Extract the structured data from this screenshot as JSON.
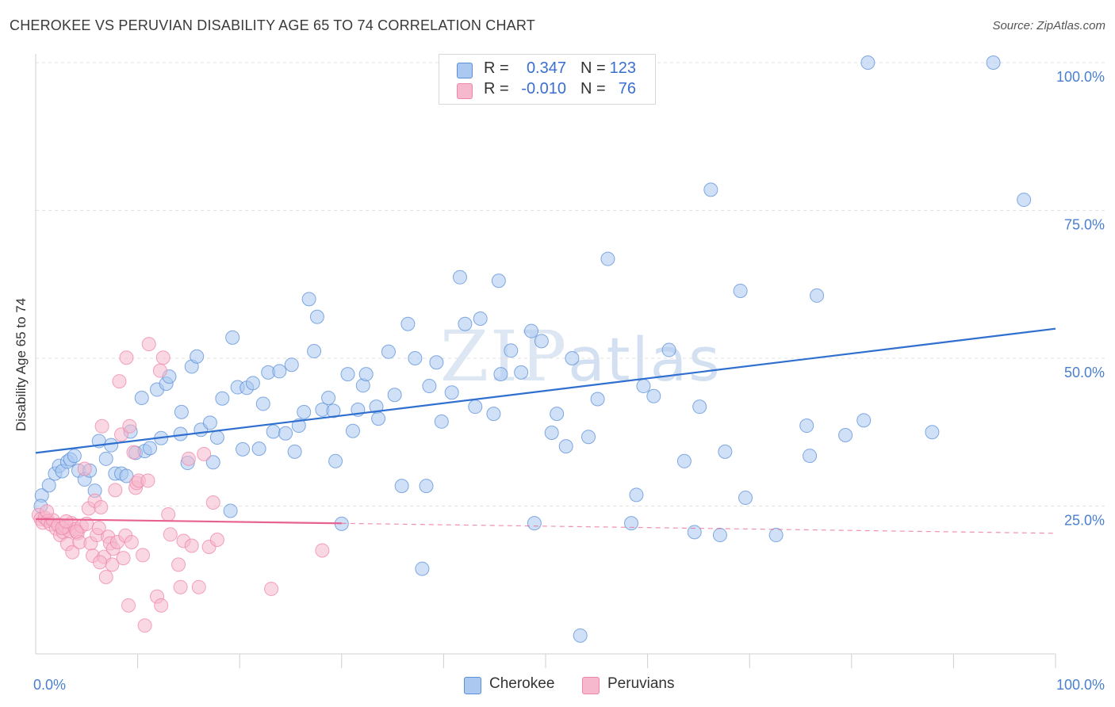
{
  "header": {
    "title": "CHEROKEE VS PERUVIAN DISABILITY AGE 65 TO 74 CORRELATION CHART",
    "source": "Source: ZipAtlas.com"
  },
  "watermark": {
    "zip": "ZIP",
    "atlas": "atlas"
  },
  "legend": {
    "rows": [
      {
        "r_label": "R =",
        "r_value": "0.347",
        "n_label": "N =",
        "n_value": "123",
        "color": "#aac8f0"
      },
      {
        "r_label": "R =",
        "r_value": "-0.010",
        "n_label": "N =",
        "n_value": "76",
        "color": "#f6b8cc"
      }
    ]
  },
  "bottom_legend": {
    "items": [
      {
        "label": "Cherokee",
        "color": "#aac8f0"
      },
      {
        "label": "Peruvians",
        "color": "#f6b8cc"
      }
    ]
  },
  "chart_data": {
    "type": "scatter",
    "title": "CHEROKEE VS PERUVIAN DISABILITY AGE 65 TO 74 CORRELATION CHART",
    "xlabel": "",
    "ylabel": "Disability Age 65 to 74",
    "xlim": [
      0,
      100
    ],
    "ylim": [
      0,
      100
    ],
    "x_tick_labels": [
      {
        "value": 0,
        "label": "0.0%"
      },
      {
        "value": 100,
        "label": "100.0%"
      }
    ],
    "y_tick_labels": [
      {
        "value": 25,
        "label": "25.0%"
      },
      {
        "value": 50,
        "label": "50.0%"
      },
      {
        "value": 75,
        "label": "75.0%"
      },
      {
        "value": 100,
        "label": "100.0%"
      }
    ],
    "x_minor_ticks": [
      10,
      20,
      30,
      40,
      50,
      60,
      70,
      80,
      90,
      100
    ],
    "grid": true,
    "legend_position": "top-center",
    "series": [
      {
        "name": "Cherokee",
        "color": "#5b8fd8",
        "fill": "#aac8f0",
        "trend": {
          "x0": 0,
          "y0": 34.0,
          "x1": 100,
          "y1": 55.0,
          "solid_until": 100,
          "color": "#2f6fd0"
        },
        "points": [
          [
            0.6,
            26.8
          ],
          [
            0.5,
            25.0
          ],
          [
            1.3,
            28.5
          ],
          [
            1.9,
            30.5
          ],
          [
            2.3,
            31.8
          ],
          [
            2.6,
            30.9
          ],
          [
            3.1,
            32.5
          ],
          [
            3.4,
            32.9
          ],
          [
            3.8,
            33.5
          ],
          [
            4.2,
            31.0
          ],
          [
            4.8,
            29.5
          ],
          [
            5.3,
            31.0
          ],
          [
            5.8,
            27.6
          ],
          [
            6.2,
            36.0
          ],
          [
            6.9,
            33.0
          ],
          [
            7.4,
            35.3
          ],
          [
            7.8,
            30.5
          ],
          [
            8.4,
            30.5
          ],
          [
            8.9,
            30.1
          ],
          [
            9.3,
            37.6
          ],
          [
            9.8,
            34.0
          ],
          [
            10.4,
            43.3
          ],
          [
            10.7,
            34.3
          ],
          [
            11.2,
            34.8
          ],
          [
            11.9,
            44.7
          ],
          [
            12.3,
            36.5
          ],
          [
            12.8,
            45.7
          ],
          [
            13.1,
            46.9
          ],
          [
            14.2,
            37.2
          ],
          [
            14.3,
            40.9
          ],
          [
            14.9,
            32.3
          ],
          [
            15.3,
            48.6
          ],
          [
            15.8,
            50.3
          ],
          [
            16.2,
            37.9
          ],
          [
            17.1,
            39.1
          ],
          [
            17.4,
            32.4
          ],
          [
            17.8,
            36.6
          ],
          [
            18.3,
            43.2
          ],
          [
            19.1,
            24.2
          ],
          [
            19.3,
            53.5
          ],
          [
            19.8,
            45.1
          ],
          [
            20.3,
            34.6
          ],
          [
            20.7,
            45.0
          ],
          [
            21.3,
            45.8
          ],
          [
            21.9,
            34.7
          ],
          [
            22.3,
            42.3
          ],
          [
            22.8,
            47.6
          ],
          [
            23.3,
            37.6
          ],
          [
            23.9,
            47.8
          ],
          [
            24.5,
            37.3
          ],
          [
            25.1,
            48.9
          ],
          [
            25.4,
            34.2
          ],
          [
            25.8,
            38.6
          ],
          [
            26.3,
            40.9
          ],
          [
            26.8,
            60.0
          ],
          [
            27.3,
            51.2
          ],
          [
            27.6,
            57.0
          ],
          [
            28.1,
            41.3
          ],
          [
            28.7,
            43.3
          ],
          [
            29.2,
            41.1
          ],
          [
            29.4,
            32.6
          ],
          [
            30.0,
            22.0
          ],
          [
            30.6,
            47.3
          ],
          [
            31.1,
            37.7
          ],
          [
            31.6,
            41.3
          ],
          [
            32.1,
            45.4
          ],
          [
            32.4,
            47.3
          ],
          [
            33.4,
            41.8
          ],
          [
            33.6,
            39.8
          ],
          [
            34.6,
            51.1
          ],
          [
            35.2,
            43.8
          ],
          [
            35.9,
            28.4
          ],
          [
            36.5,
            55.8
          ],
          [
            37.2,
            50.0
          ],
          [
            37.9,
            14.4
          ],
          [
            38.3,
            28.4
          ],
          [
            38.6,
            45.3
          ],
          [
            39.3,
            49.3
          ],
          [
            39.8,
            39.3
          ],
          [
            40.8,
            44.2
          ],
          [
            41.6,
            63.7
          ],
          [
            42.1,
            55.8
          ],
          [
            43.1,
            41.8
          ],
          [
            43.6,
            56.7
          ],
          [
            44.9,
            40.6
          ],
          [
            45.4,
            63.1
          ],
          [
            45.6,
            47.3
          ],
          [
            46.6,
            51.3
          ],
          [
            47.6,
            47.6
          ],
          [
            48.6,
            54.6
          ],
          [
            48.9,
            22.1
          ],
          [
            49.6,
            52.9
          ],
          [
            50.6,
            37.4
          ],
          [
            51.1,
            40.6
          ],
          [
            52.0,
            35.1
          ],
          [
            52.6,
            50.0
          ],
          [
            53.4,
            3.1
          ],
          [
            54.2,
            36.7
          ],
          [
            55.1,
            43.1
          ],
          [
            56.1,
            66.8
          ],
          [
            58.4,
            22.1
          ],
          [
            58.9,
            26.9
          ],
          [
            59.6,
            45.3
          ],
          [
            60.6,
            43.6
          ],
          [
            62.1,
            51.4
          ],
          [
            63.6,
            32.6
          ],
          [
            64.6,
            20.6
          ],
          [
            65.1,
            41.8
          ],
          [
            66.2,
            78.5
          ],
          [
            67.1,
            20.1
          ],
          [
            67.6,
            34.2
          ],
          [
            69.1,
            61.4
          ],
          [
            69.6,
            26.4
          ],
          [
            72.6,
            20.1
          ],
          [
            75.6,
            38.6
          ],
          [
            75.9,
            33.5
          ],
          [
            76.6,
            60.6
          ],
          [
            79.4,
            37.0
          ],
          [
            81.2,
            39.5
          ],
          [
            81.6,
            100.0
          ],
          [
            87.9,
            37.5
          ],
          [
            93.9,
            100.0
          ],
          [
            96.9,
            76.8
          ]
        ]
      },
      {
        "name": "Peruvians",
        "color": "#ef86a8",
        "fill": "#f6b8cc",
        "trend": {
          "x0": 0,
          "y0": 22.8,
          "x1": 100,
          "y1": 20.4,
          "solid_until": 30,
          "color": "#e8628f"
        },
        "points": [
          [
            0.3,
            23.5
          ],
          [
            0.5,
            22.8
          ],
          [
            0.7,
            22.2
          ],
          [
            0.9,
            23.0
          ],
          [
            1.2,
            22.5
          ],
          [
            1.5,
            21.9
          ],
          [
            1.7,
            22.6
          ],
          [
            2.0,
            21.2
          ],
          [
            2.2,
            21.8
          ],
          [
            2.4,
            20.1
          ],
          [
            2.7,
            20.6
          ],
          [
            2.9,
            21.5
          ],
          [
            3.1,
            18.6
          ],
          [
            3.3,
            20.8
          ],
          [
            3.5,
            22.1
          ],
          [
            3.6,
            17.2
          ],
          [
            3.9,
            21.1
          ],
          [
            4.1,
            20.4
          ],
          [
            4.3,
            18.9
          ],
          [
            4.5,
            21.6
          ],
          [
            4.8,
            31.3
          ],
          [
            5.0,
            22.0
          ],
          [
            5.2,
            24.6
          ],
          [
            5.4,
            18.7
          ],
          [
            5.6,
            16.6
          ],
          [
            5.8,
            25.9
          ],
          [
            6.0,
            20.1
          ],
          [
            6.2,
            21.3
          ],
          [
            6.4,
            24.8
          ],
          [
            6.5,
            38.5
          ],
          [
            6.7,
            16.4
          ],
          [
            6.9,
            13.0
          ],
          [
            7.1,
            19.8
          ],
          [
            7.3,
            18.7
          ],
          [
            7.5,
            15.1
          ],
          [
            7.6,
            17.8
          ],
          [
            7.8,
            27.7
          ],
          [
            8.0,
            18.9
          ],
          [
            8.2,
            46.1
          ],
          [
            8.4,
            37.1
          ],
          [
            8.6,
            16.2
          ],
          [
            8.8,
            20.0
          ],
          [
            8.9,
            50.1
          ],
          [
            9.1,
            8.2
          ],
          [
            9.2,
            38.5
          ],
          [
            9.4,
            18.9
          ],
          [
            9.6,
            34.1
          ],
          [
            9.8,
            28.1
          ],
          [
            9.9,
            28.9
          ],
          [
            10.1,
            29.3
          ],
          [
            10.5,
            16.7
          ],
          [
            10.7,
            4.8
          ],
          [
            11.0,
            29.3
          ],
          [
            11.1,
            52.4
          ],
          [
            11.9,
            9.7
          ],
          [
            12.2,
            47.9
          ],
          [
            12.3,
            8.2
          ],
          [
            12.5,
            50.1
          ],
          [
            13.0,
            23.6
          ],
          [
            13.2,
            20.2
          ],
          [
            14.0,
            15.1
          ],
          [
            14.2,
            11.3
          ],
          [
            14.5,
            19.1
          ],
          [
            15.0,
            33.0
          ],
          [
            15.3,
            18.3
          ],
          [
            16.0,
            11.3
          ],
          [
            16.5,
            33.8
          ],
          [
            17.0,
            18.1
          ],
          [
            17.4,
            25.6
          ],
          [
            17.8,
            19.3
          ],
          [
            23.1,
            11.0
          ],
          [
            28.1,
            17.5
          ],
          [
            1.1,
            24.1
          ],
          [
            2.6,
            21.3
          ],
          [
            3.0,
            22.4
          ],
          [
            4.0,
            20.7
          ],
          [
            6.3,
            15.5
          ]
        ]
      }
    ]
  }
}
